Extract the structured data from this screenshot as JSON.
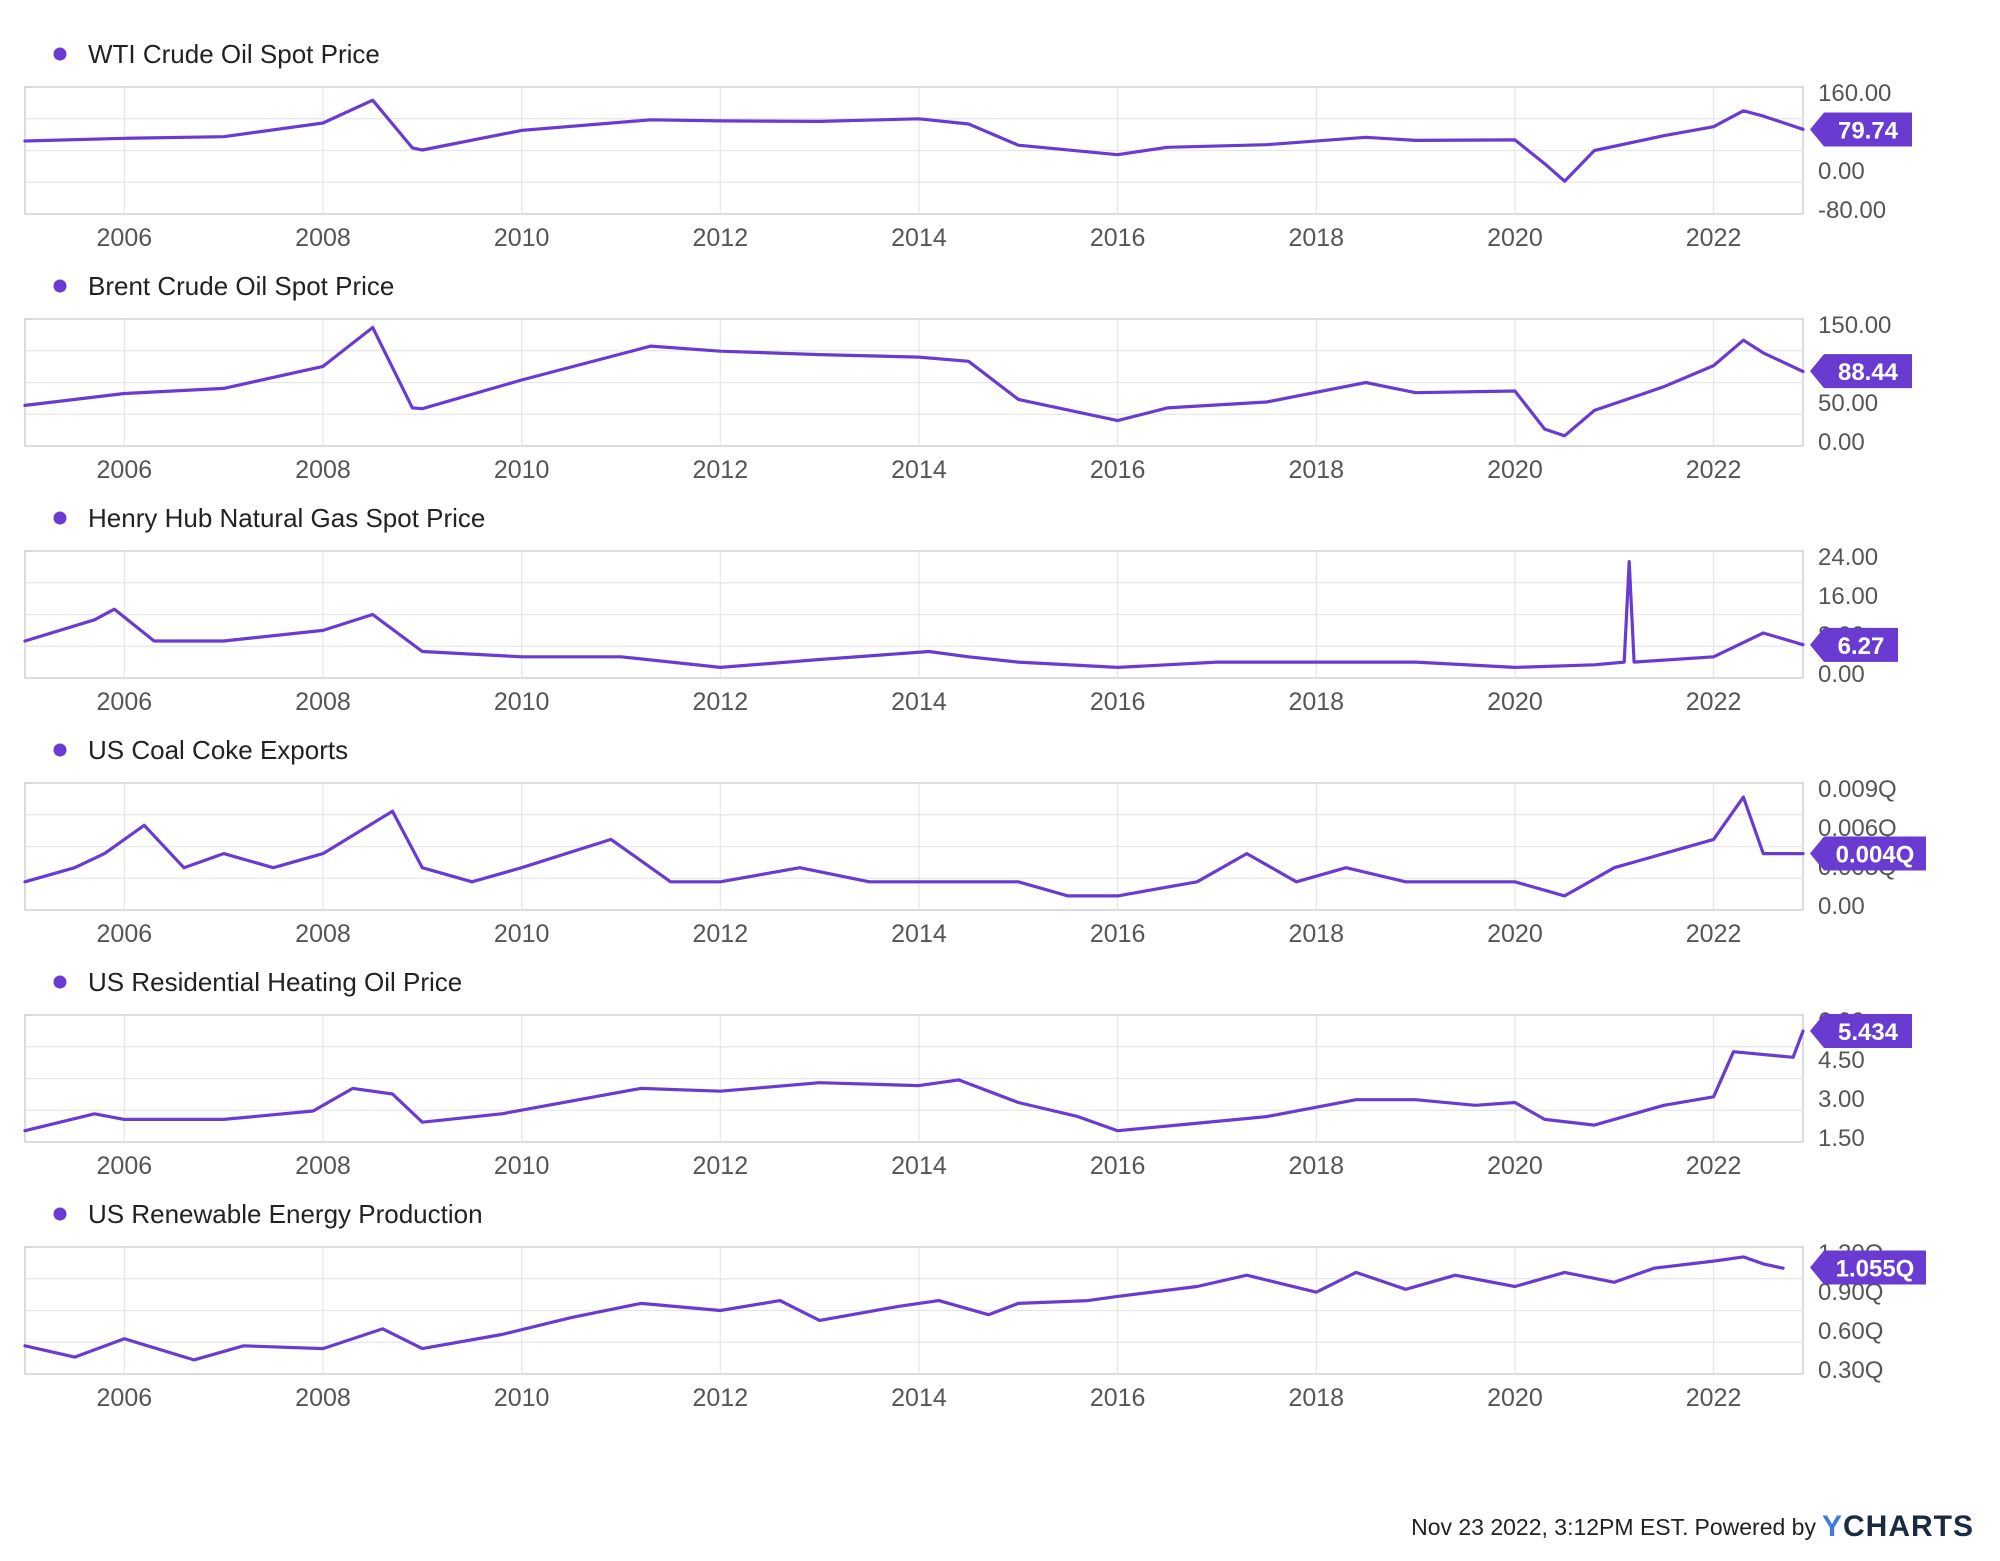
{
  "footer": {
    "timestamp_text": "Nov 23 2022, 3:12PM EST.",
    "powered_by": "Powered by",
    "brand_y": "Y",
    "brand_rest": "CHARTS"
  },
  "colors": {
    "series": "#6a3bd1",
    "grid": "#e6e6ea",
    "frame": "#cfcfd6",
    "axis_text": "#555555"
  },
  "chart_data": [
    {
      "type": "line",
      "title": "WTI Crude Oil Spot Price",
      "xticks": [
        "2006",
        "2008",
        "2010",
        "2012",
        "2014",
        "2016",
        "2018",
        "2020",
        "2022"
      ],
      "yticks": [
        "160.00",
        "80.00",
        "0.00",
        "-80.00"
      ],
      "ylim": [
        -80,
        160
      ],
      "current_value": 79.74,
      "current_label": "79.74",
      "series": [
        {
          "x": [
            2005.0,
            2006.0,
            2007.0,
            2008.0,
            2008.5,
            2008.9,
            2009.0,
            2010.0,
            2011.3,
            2012.0,
            2013.0,
            2014.0,
            2014.5,
            2015.0,
            2016.0,
            2016.5,
            2017.5,
            2018.5,
            2019.0,
            2020.0,
            2020.3,
            2020.5,
            2020.8,
            2021.5,
            2022.0,
            2022.3,
            2022.5,
            2022.9
          ],
          "y": [
            58,
            63,
            66,
            92,
            135,
            45,
            41,
            78,
            98,
            96,
            95,
            100,
            90,
            50,
            32,
            46,
            51,
            65,
            59,
            60,
            15,
            -18,
            40,
            68,
            85,
            115,
            105,
            80
          ]
        }
      ]
    },
    {
      "type": "line",
      "title": "Brent Crude Oil Spot Price",
      "xticks": [
        "2006",
        "2008",
        "2010",
        "2012",
        "2014",
        "2016",
        "2018",
        "2020",
        "2022"
      ],
      "yticks": [
        "150.00",
        "100.00",
        "50.00",
        "0.00"
      ],
      "ylim": [
        0,
        150
      ],
      "current_value": 88.44,
      "current_label": "88.44",
      "series": [
        {
          "x": [
            2005.0,
            2006.0,
            2007.0,
            2008.0,
            2008.5,
            2008.9,
            2009.0,
            2010.0,
            2011.3,
            2012.0,
            2013.0,
            2014.0,
            2014.5,
            2015.0,
            2016.0,
            2016.5,
            2017.5,
            2018.5,
            2019.0,
            2020.0,
            2020.3,
            2020.5,
            2020.8,
            2021.5,
            2022.0,
            2022.3,
            2022.5,
            2022.9
          ],
          "y": [
            48,
            62,
            68,
            94,
            140,
            45,
            44,
            78,
            118,
            112,
            108,
            105,
            100,
            55,
            30,
            45,
            52,
            75,
            63,
            65,
            20,
            12,
            42,
            70,
            95,
            125,
            110,
            88
          ]
        }
      ]
    },
    {
      "type": "line",
      "title": "Henry Hub Natural Gas Spot Price",
      "xticks": [
        "2006",
        "2008",
        "2010",
        "2012",
        "2014",
        "2016",
        "2018",
        "2020",
        "2022"
      ],
      "yticks": [
        "24.00",
        "16.00",
        "8.00",
        "0.00"
      ],
      "ylim": [
        0,
        24
      ],
      "current_value": 6.27,
      "current_label": "6.27",
      "series": [
        {
          "x": [
            2005.0,
            2005.7,
            2005.9,
            2006.3,
            2007.0,
            2008.0,
            2008.5,
            2009.0,
            2010.0,
            2011.0,
            2012.0,
            2013.0,
            2014.1,
            2014.5,
            2015.0,
            2016.0,
            2017.0,
            2018.0,
            2019.0,
            2020.0,
            2020.8,
            2021.1,
            2021.15,
            2021.2,
            2022.0,
            2022.5,
            2022.9
          ],
          "y": [
            7,
            11,
            13,
            7,
            7,
            9,
            12,
            5,
            4,
            4,
            2,
            3.5,
            5,
            4,
            3,
            2,
            3,
            3,
            3,
            2,
            2.5,
            3,
            22,
            3,
            4,
            8.5,
            6.3
          ]
        }
      ]
    },
    {
      "type": "line",
      "title": "US Coal Coke Exports",
      "xticks": [
        "2006",
        "2008",
        "2010",
        "2012",
        "2014",
        "2016",
        "2018",
        "2020",
        "2022"
      ],
      "yticks": [
        "0.009Q",
        "0.006Q",
        "0.003Q",
        "0.00"
      ],
      "ylim": [
        0,
        0.009
      ],
      "current_value": 0.004,
      "current_label": "0.004Q",
      "series": [
        {
          "x": [
            2005.0,
            2005.5,
            2005.8,
            2006.2,
            2006.6,
            2007.0,
            2007.5,
            2008.0,
            2008.7,
            2009.0,
            2009.5,
            2010.0,
            2010.9,
            2011.5,
            2012.0,
            2012.8,
            2013.5,
            2014.0,
            2014.5,
            2015.0,
            2015.5,
            2016.0,
            2016.8,
            2017.3,
            2017.8,
            2018.3,
            2018.9,
            2019.5,
            2020.0,
            2020.5,
            2021.0,
            2021.5,
            2022.0,
            2022.3,
            2022.5,
            2022.9
          ],
          "y": [
            0.002,
            0.003,
            0.004,
            0.006,
            0.003,
            0.004,
            0.003,
            0.004,
            0.007,
            0.003,
            0.002,
            0.003,
            0.005,
            0.002,
            0.002,
            0.003,
            0.002,
            0.002,
            0.002,
            0.002,
            0.001,
            0.001,
            0.002,
            0.004,
            0.002,
            0.003,
            0.002,
            0.002,
            0.002,
            0.001,
            0.003,
            0.004,
            0.005,
            0.008,
            0.004,
            0.004
          ]
        }
      ]
    },
    {
      "type": "line",
      "title": "US Residential Heating Oil Price",
      "xticks": [
        "2006",
        "2008",
        "2010",
        "2012",
        "2014",
        "2016",
        "2018",
        "2020",
        "2022"
      ],
      "yticks": [
        "6.00",
        "4.50",
        "3.00",
        "1.50"
      ],
      "ylim": [
        1.5,
        6.0
      ],
      "current_value": 5.434,
      "current_label": "5.434",
      "series": [
        {
          "x": [
            2005.0,
            2005.7,
            2006.0,
            2007.0,
            2007.9,
            2008.3,
            2008.7,
            2009.0,
            2009.8,
            2011.2,
            2012.0,
            2013.0,
            2014.0,
            2014.4,
            2015.0,
            2015.6,
            2016.0,
            2016.6,
            2017.5,
            2018.4,
            2019.0,
            2019.6,
            2020.0,
            2020.3,
            2020.8,
            2021.5,
            2022.0,
            2022.2,
            2022.8,
            2022.9
          ],
          "y": [
            1.9,
            2.5,
            2.3,
            2.3,
            2.6,
            3.4,
            3.2,
            2.2,
            2.5,
            3.4,
            3.3,
            3.6,
            3.5,
            3.7,
            2.9,
            2.4,
            1.9,
            2.1,
            2.4,
            3.0,
            3.0,
            2.8,
            2.9,
            2.3,
            2.1,
            2.8,
            3.1,
            4.7,
            4.5,
            5.43
          ]
        }
      ]
    },
    {
      "type": "line",
      "title": "US Renewable Energy Production",
      "xticks": [
        "2006",
        "2008",
        "2010",
        "2012",
        "2014",
        "2016",
        "2018",
        "2020",
        "2022"
      ],
      "yticks": [
        "1.20Q",
        "0.90Q",
        "0.60Q",
        "0.30Q"
      ],
      "ylim": [
        0.3,
        1.2
      ],
      "current_value": 1.055,
      "current_label": "1.055Q",
      "series": [
        {
          "x": [
            2005.0,
            2005.5,
            2006.0,
            2006.7,
            2007.2,
            2008.0,
            2008.6,
            2009.0,
            2009.8,
            2010.5,
            2011.2,
            2012.0,
            2012.6,
            2013.0,
            2013.8,
            2014.2,
            2014.7,
            2015.0,
            2015.7,
            2016.0,
            2016.8,
            2017.3,
            2018.0,
            2018.4,
            2018.9,
            2019.4,
            2020.0,
            2020.5,
            2021.0,
            2021.4,
            2022.0,
            2022.3,
            2022.5,
            2022.7
          ],
          "y": [
            0.5,
            0.42,
            0.55,
            0.4,
            0.5,
            0.48,
            0.62,
            0.48,
            0.58,
            0.7,
            0.8,
            0.75,
            0.82,
            0.68,
            0.78,
            0.82,
            0.72,
            0.8,
            0.82,
            0.85,
            0.92,
            1.0,
            0.88,
            1.02,
            0.9,
            1.0,
            0.92,
            1.02,
            0.95,
            1.05,
            1.1,
            1.13,
            1.08,
            1.05
          ]
        }
      ]
    }
  ]
}
